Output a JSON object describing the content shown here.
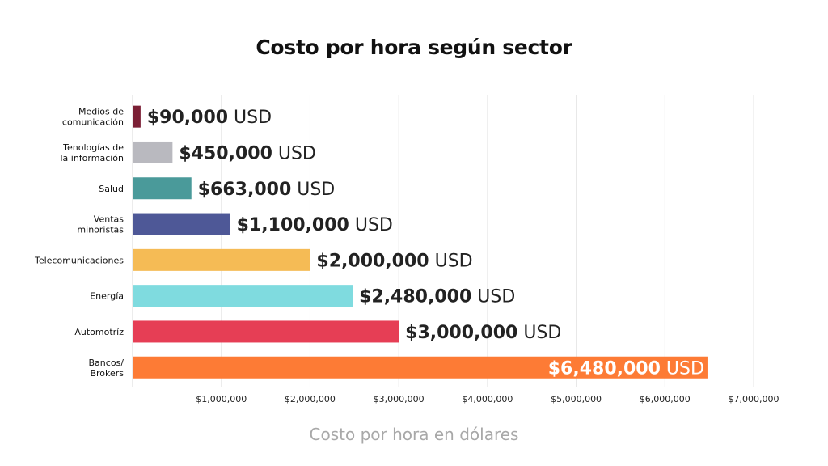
{
  "chart_data": {
    "type": "bar",
    "orientation": "horizontal",
    "title": "Costo por hora según sector",
    "xlabel": "Costo por hora en dólares",
    "ylabel": "",
    "xlim": [
      0,
      7000000
    ],
    "grid": true,
    "legend": "none",
    "categories": [
      [
        "Medios de",
        "comunicación"
      ],
      [
        "Tenologías de",
        "la información"
      ],
      [
        "Salud"
      ],
      [
        "Ventas",
        "minoristas"
      ],
      [
        "Telecomunicaciones"
      ],
      [
        "Energía"
      ],
      [
        "Automotríz"
      ],
      [
        "Bancos/",
        "Brokers"
      ]
    ],
    "values": [
      90000,
      450000,
      663000,
      1100000,
      2000000,
      2480000,
      3000000,
      6480000
    ],
    "data_labels": [
      {
        "amount": "$90,000",
        "unit": "USD"
      },
      {
        "amount": "$450,000",
        "unit": "USD"
      },
      {
        "amount": "$663,000",
        "unit": "USD"
      },
      {
        "amount": "$1,100,000",
        "unit": "USD"
      },
      {
        "amount": "$2,000,000",
        "unit": "USD"
      },
      {
        "amount": "$2,480,000",
        "unit": "USD"
      },
      {
        "amount": "$3,000,000",
        "unit": "USD"
      },
      {
        "amount": "$6,480,000",
        "unit": "USD"
      }
    ],
    "bar_colors": [
      "#7b1f35",
      "#b9b9bf",
      "#4a9a9a",
      "#4e5897",
      "#f5bb55",
      "#7fdbdf",
      "#e63e55",
      "#fd7b35"
    ],
    "label_inside": [
      false,
      false,
      false,
      false,
      false,
      false,
      false,
      true
    ],
    "x_ticks": [
      1000000,
      2000000,
      3000000,
      4000000,
      5000000,
      6000000,
      7000000
    ],
    "x_tick_labels": [
      "$1,000,000",
      "$2,000,000",
      "$3,000,000",
      "$4,000,000",
      "$5,000,000",
      "$6,000,000",
      "$7,000,000"
    ]
  }
}
